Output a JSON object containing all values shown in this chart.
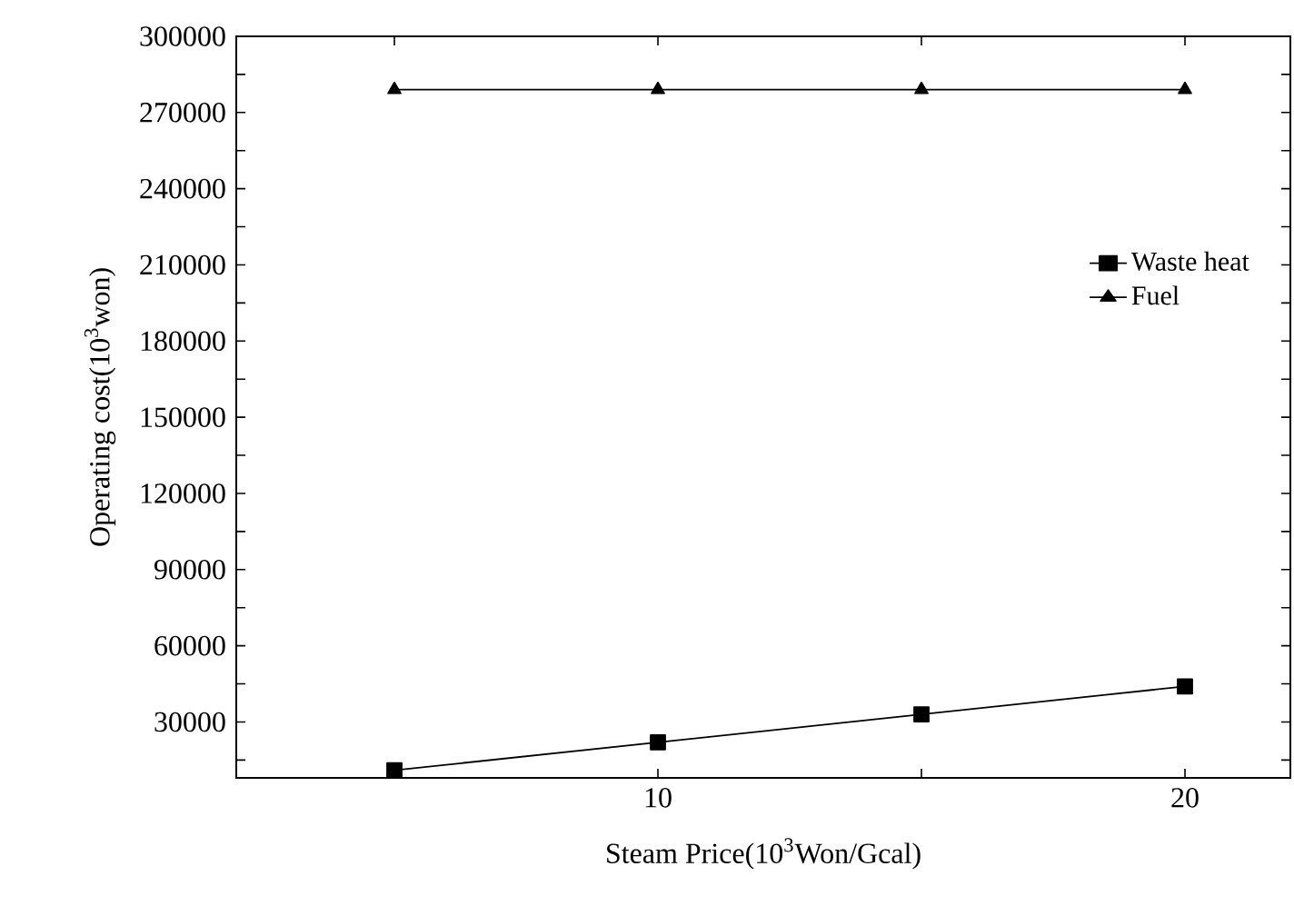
{
  "chart_data": {
    "type": "line",
    "xlabel": "Steam Price(10$^{3}$Won/Gcal)",
    "ylabel": "Operating cost(10$^{3}$won)",
    "x": [
      5,
      10,
      15,
      20
    ],
    "series": [
      {
        "name": "Waste heat",
        "color": "#000000",
        "marker": "square",
        "values": [
          11000,
          22000,
          33000,
          44000
        ]
      },
      {
        "name": "Fuel",
        "color": "#000000",
        "marker": "triangle",
        "values": [
          279000,
          279000,
          279000,
          279000
        ]
      }
    ],
    "xlim": [
      2,
      22
    ],
    "ylim": [
      8000,
      300000
    ],
    "xticks": [
      {
        "value": 5,
        "label": null
      },
      10,
      {
        "value": 15,
        "label": null
      },
      20
    ],
    "yticks": [
      {
        "value": 15000,
        "label": null
      },
      30000,
      {
        "value": 45000,
        "label": null
      },
      60000,
      {
        "value": 75000,
        "label": null
      },
      90000,
      {
        "value": 105000,
        "label": null
      },
      120000,
      {
        "value": 135000,
        "label": null
      },
      150000,
      {
        "value": 165000,
        "label": null
      },
      180000,
      {
        "value": 195000,
        "label": null
      },
      210000,
      {
        "value": 225000,
        "label": null
      },
      240000,
      {
        "value": 255000,
        "label": null
      },
      270000,
      {
        "value": 285000,
        "label": null
      },
      300000
    ],
    "legend": "right",
    "line_style": "solid",
    "grid": false
  }
}
